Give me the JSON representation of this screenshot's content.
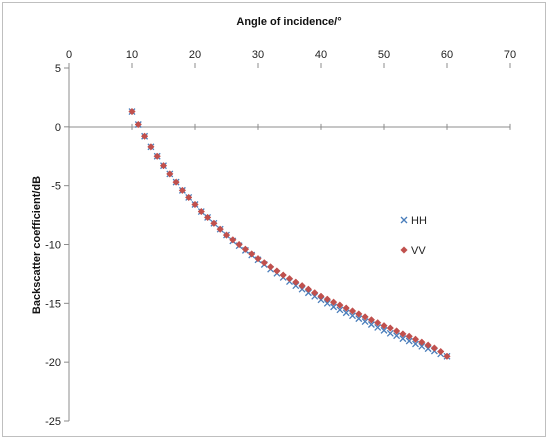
{
  "chart_data": {
    "type": "scatter",
    "title": "",
    "xlabel": "Angle of incidence/°",
    "ylabel": "Backscatter coefficient/dB",
    "xlim": [
      0,
      70
    ],
    "ylim": [
      -25,
      5
    ],
    "x_ticks": [
      "0",
      "10",
      "20",
      "30",
      "40",
      "50",
      "60",
      "70"
    ],
    "y_ticks": [
      "5",
      "0",
      "-5",
      "-10",
      "-15",
      "-20",
      "-25"
    ],
    "x_axis_position": "top",
    "grid": false,
    "legend_position": "right",
    "x": [
      10,
      11,
      12,
      13,
      14,
      15,
      16,
      17,
      18,
      19,
      20,
      21,
      22,
      23,
      24,
      25,
      26,
      27,
      28,
      29,
      30,
      31,
      32,
      33,
      34,
      35,
      36,
      37,
      38,
      39,
      40,
      41,
      42,
      43,
      44,
      45,
      46,
      47,
      48,
      49,
      50,
      51,
      52,
      53,
      54,
      55,
      56,
      57,
      58,
      59,
      60
    ],
    "series": [
      {
        "name": "HH",
        "marker": "x",
        "color": "#4a7ebb",
        "values": [
          1.3,
          0.2,
          -0.8,
          -1.7,
          -2.5,
          -3.3,
          -4.0,
          -4.7,
          -5.4,
          -6.0,
          -6.6,
          -7.2,
          -7.7,
          -8.2,
          -8.7,
          -9.2,
          -9.7,
          -10.1,
          -10.5,
          -10.9,
          -11.3,
          -11.7,
          -12.1,
          -12.45,
          -12.8,
          -13.15,
          -13.5,
          -13.8,
          -14.1,
          -14.4,
          -14.7,
          -15.0,
          -15.3,
          -15.55,
          -15.8,
          -16.05,
          -16.3,
          -16.55,
          -16.8,
          -17.05,
          -17.3,
          -17.55,
          -17.75,
          -18.0,
          -18.2,
          -18.45,
          -18.65,
          -18.85,
          -19.05,
          -19.3,
          -19.5
        ]
      },
      {
        "name": "VV",
        "marker": "diamond",
        "color": "#c0504d",
        "values": [
          1.3,
          0.2,
          -0.8,
          -1.7,
          -2.5,
          -3.3,
          -4.0,
          -4.7,
          -5.4,
          -6.0,
          -6.6,
          -7.2,
          -7.7,
          -8.2,
          -8.7,
          -9.2,
          -9.6,
          -10.0,
          -10.4,
          -10.8,
          -11.2,
          -11.55,
          -11.9,
          -12.25,
          -12.6,
          -12.9,
          -13.2,
          -13.5,
          -13.8,
          -14.1,
          -14.4,
          -14.65,
          -14.9,
          -15.15,
          -15.4,
          -15.65,
          -15.9,
          -16.15,
          -16.4,
          -16.65,
          -16.9,
          -17.1,
          -17.35,
          -17.6,
          -17.8,
          -18.05,
          -18.3,
          -18.55,
          -18.8,
          -19.1,
          -19.5
        ]
      }
    ]
  }
}
